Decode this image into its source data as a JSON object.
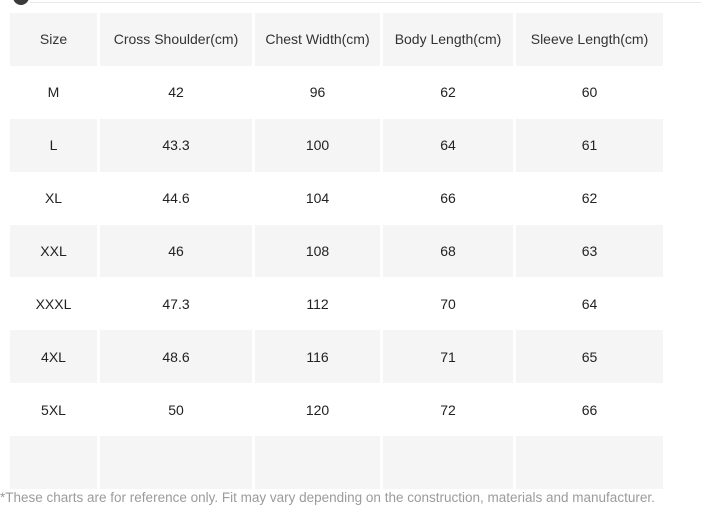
{
  "top": {
    "icon": "cropped-circle-icon"
  },
  "table": {
    "headers": [
      "Size",
      "Cross Shoulder(cm)",
      "Chest Width(cm)",
      "Body Length(cm)",
      "Sleeve Length(cm)"
    ],
    "rows": [
      {
        "size": "M",
        "cross_shoulder": "42",
        "chest_width": "96",
        "body_length": "62",
        "sleeve_length": "60"
      },
      {
        "size": "L",
        "cross_shoulder": "43.3",
        "chest_width": "100",
        "body_length": "64",
        "sleeve_length": "61"
      },
      {
        "size": "XL",
        "cross_shoulder": "44.6",
        "chest_width": "104",
        "body_length": "66",
        "sleeve_length": "62"
      },
      {
        "size": "XXL",
        "cross_shoulder": "46",
        "chest_width": "108",
        "body_length": "68",
        "sleeve_length": "63"
      },
      {
        "size": "XXXL",
        "cross_shoulder": "47.3",
        "chest_width": "112",
        "body_length": "70",
        "sleeve_length": "64"
      },
      {
        "size": "4XL",
        "cross_shoulder": "48.6",
        "chest_width": "116",
        "body_length": "71",
        "sleeve_length": "65"
      },
      {
        "size": "5XL",
        "cross_shoulder": "50",
        "chest_width": "120",
        "body_length": "72",
        "sleeve_length": "66"
      },
      {
        "size": "",
        "cross_shoulder": "",
        "chest_width": "",
        "body_length": "",
        "sleeve_length": ""
      }
    ],
    "colors": {
      "shade_bg": "#f5f5f5",
      "header_text": "#333333",
      "cell_text": "#222222"
    }
  },
  "footer": {
    "note": "*These charts are for reference only. Fit may vary depending on the construction, materials and manufacturer.",
    "color": "#9b9b9b"
  }
}
